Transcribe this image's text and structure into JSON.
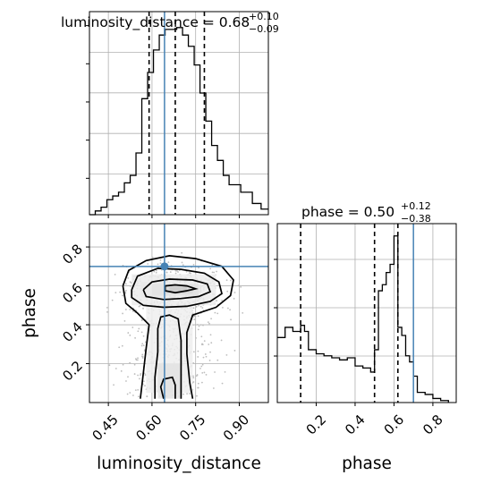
{
  "chart_data": [
    {
      "type": "histogram",
      "title": {
        "base": "luminosity_distance = 0.68",
        "sup": "+0.10",
        "sub": "−0.09"
      },
      "parameter": "luminosity_distance",
      "xlim": [
        0.385,
        1.0
      ],
      "bins": [
        0.385,
        0.405,
        0.425,
        0.445,
        0.465,
        0.485,
        0.505,
        0.525,
        0.545,
        0.565,
        0.585,
        0.605,
        0.625,
        0.645,
        0.665,
        0.685,
        0.705,
        0.725,
        0.745,
        0.765,
        0.785,
        0.805,
        0.825,
        0.845,
        0.865,
        0.905,
        0.945,
        0.975,
        1.0
      ],
      "counts": [
        0,
        2,
        4,
        8,
        10,
        12,
        17,
        21,
        33,
        62,
        76,
        88,
        96,
        99,
        99,
        100,
        96,
        90,
        80,
        65,
        50,
        37,
        29,
        21,
        16,
        12,
        6,
        3
      ],
      "quantile_lines": [
        0.59,
        0.68,
        0.78
      ],
      "truth": 0.643
    },
    {
      "type": "contour",
      "x_param": "luminosity_distance",
      "y_param": "phase",
      "xlim": [
        0.385,
        1.0
      ],
      "ylim": [
        0.0,
        0.92
      ],
      "x_ticks": [
        0.45,
        0.6,
        0.75,
        0.9
      ],
      "x_tick_labels": [
        "0.45",
        "0.60",
        "0.75",
        "0.90"
      ],
      "y_ticks": [
        0.2,
        0.4,
        0.6,
        0.8
      ],
      "y_tick_labels": [
        "0.2",
        "0.4",
        "0.6",
        "0.8"
      ],
      "xlabel": "luminosity_distance",
      "ylabel": "phase",
      "truth": [
        0.643,
        0.7
      ]
    },
    {
      "type": "histogram",
      "title": {
        "base": "phase = 0.50",
        "sup": "+0.12",
        "sub": "−0.38"
      },
      "parameter": "phase",
      "xlim": [
        0.0,
        0.92
      ],
      "bins": [
        0.0,
        0.04,
        0.08,
        0.12,
        0.14,
        0.16,
        0.2,
        0.24,
        0.28,
        0.32,
        0.36,
        0.4,
        0.44,
        0.48,
        0.5,
        0.52,
        0.54,
        0.56,
        0.58,
        0.6,
        0.62,
        0.64,
        0.66,
        0.68,
        0.7,
        0.72,
        0.76,
        0.8,
        0.84,
        0.88
      ],
      "counts": [
        32,
        37,
        35,
        38,
        35,
        26,
        24,
        23,
        22,
        21,
        22,
        18,
        17,
        15,
        26,
        55,
        58,
        64,
        68,
        82,
        37,
        33,
        23,
        20,
        13,
        5,
        4,
        2,
        1
      ],
      "quantile_lines": [
        0.12,
        0.5,
        0.62
      ],
      "truth": 0.7,
      "x_ticks": [
        0.2,
        0.4,
        0.6,
        0.8
      ],
      "x_tick_labels": [
        "0.2",
        "0.4",
        "0.6",
        "0.8"
      ],
      "xlabel": "phase"
    }
  ],
  "colors": {
    "truth_line": "#4682b4",
    "histogram": "#000000",
    "contour": "#000000",
    "grid": "#b0b0b0",
    "quantile": "#000000"
  }
}
